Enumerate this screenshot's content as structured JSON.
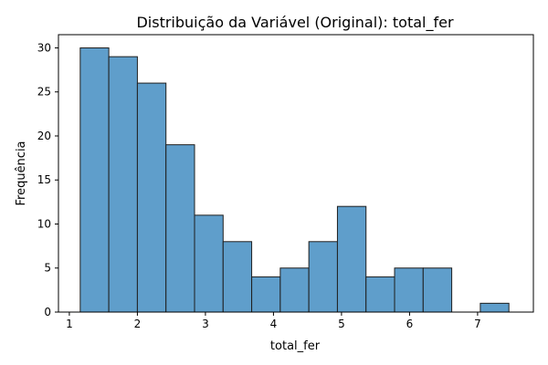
{
  "chart_data": {
    "type": "bar",
    "title": "Distribuição da Variável (Original): total_fer",
    "xlabel": "total_fer",
    "ylabel": "Frequência",
    "xlim": [
      0.84,
      7.82
    ],
    "ylim": [
      0,
      31.5
    ],
    "xticks": [
      1,
      2,
      3,
      4,
      5,
      6,
      7
    ],
    "yticks": [
      0,
      5,
      10,
      15,
      20,
      25,
      30
    ],
    "bin_edges": [
      1.16,
      1.58,
      2.0,
      2.42,
      2.84,
      3.26,
      3.68,
      4.1,
      4.52,
      4.94,
      5.36,
      5.78,
      6.2,
      6.62,
      7.04,
      7.46
    ],
    "bins": [
      {
        "x0": 1.16,
        "x1": 1.58,
        "count": 30
      },
      {
        "x0": 1.58,
        "x1": 2.0,
        "count": 29
      },
      {
        "x0": 2.0,
        "x1": 2.42,
        "count": 26
      },
      {
        "x0": 2.42,
        "x1": 2.84,
        "count": 19
      },
      {
        "x0": 2.84,
        "x1": 3.26,
        "count": 11
      },
      {
        "x0": 3.26,
        "x1": 3.68,
        "count": 8
      },
      {
        "x0": 3.68,
        "x1": 4.1,
        "count": 4
      },
      {
        "x0": 4.1,
        "x1": 4.52,
        "count": 5
      },
      {
        "x0": 4.52,
        "x1": 4.94,
        "count": 8
      },
      {
        "x0": 4.94,
        "x1": 5.36,
        "count": 12
      },
      {
        "x0": 5.36,
        "x1": 5.78,
        "count": 4
      },
      {
        "x0": 5.78,
        "x1": 6.2,
        "count": 5
      },
      {
        "x0": 6.2,
        "x1": 6.62,
        "count": 5
      },
      {
        "x0": 6.62,
        "x1": 7.04,
        "count": 0
      },
      {
        "x0": 7.04,
        "x1": 7.46,
        "count": 1
      }
    ],
    "grid": false,
    "legend": "none",
    "colors": {
      "bar_fill": "#5f9ecb",
      "bar_edge": "#1f1f1f",
      "axis": "#000000"
    }
  }
}
